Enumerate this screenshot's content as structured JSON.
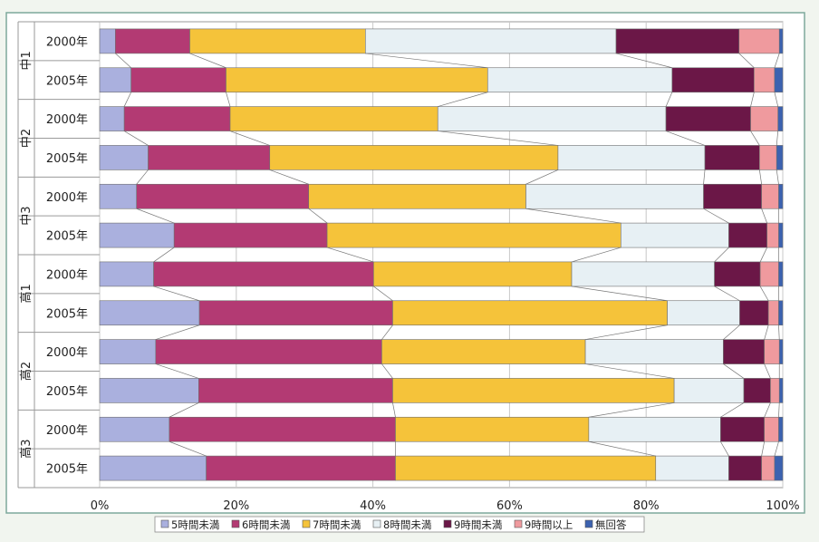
{
  "chart_data": {
    "type": "bar",
    "orientation": "horizontal",
    "stacked": true,
    "normalized": true,
    "title": "",
    "xlabel": "",
    "ylabel": "",
    "xlim": [
      0,
      100
    ],
    "x_ticks": [
      "0%",
      "20%",
      "40%",
      "60%",
      "80%",
      "100%"
    ],
    "grid": true,
    "legend_position": "bottom",
    "groups": [
      "中1",
      "中2",
      "中3",
      "高1",
      "高2",
      "高3"
    ],
    "categories": [
      "2000年",
      "2005年",
      "2000年",
      "2005年",
      "2000年",
      "2005年",
      "2000年",
      "2005年",
      "2000年",
      "2005年",
      "2000年",
      "2005年"
    ],
    "category_group": [
      0,
      0,
      1,
      1,
      2,
      2,
      3,
      3,
      4,
      4,
      5,
      5
    ],
    "series": [
      {
        "name": "5時間未満",
        "color": "#aab0de",
        "values": [
          2.3,
          4.6,
          3.6,
          7.1,
          5.4,
          10.9,
          7.9,
          14.6,
          8.2,
          14.5,
          10.2,
          15.6
        ]
      },
      {
        "name": "6時間未満",
        "color": "#b33a73",
        "values": [
          10.9,
          13.9,
          15.5,
          17.8,
          25.2,
          22.4,
          32.2,
          28.3,
          33.1,
          28.4,
          33.1,
          27.7
        ]
      },
      {
        "name": "7時間未満",
        "color": "#f5c33a",
        "values": [
          25.7,
          38.3,
          30.4,
          42.2,
          31.8,
          43.0,
          29.0,
          40.2,
          29.8,
          41.2,
          28.3,
          38.1
        ]
      },
      {
        "name": "8時間未満",
        "color": "#e7f0f4",
        "values": [
          36.7,
          27.0,
          33.4,
          21.5,
          26.0,
          15.8,
          20.9,
          10.6,
          20.2,
          10.2,
          19.3,
          10.7
        ]
      },
      {
        "name": "9時間未満",
        "color": "#6b1747",
        "values": [
          18.0,
          12.0,
          12.4,
          8.0,
          8.5,
          5.6,
          6.7,
          4.2,
          6.0,
          3.9,
          6.4,
          4.8
        ]
      },
      {
        "name": "9時間以上",
        "color": "#ef9a9e",
        "values": [
          5.9,
          3.0,
          4.0,
          2.5,
          2.5,
          1.7,
          2.7,
          1.5,
          2.2,
          1.3,
          2.1,
          1.9
        ]
      },
      {
        "name": "無回答",
        "color": "#3c62b0",
        "values": [
          0.5,
          1.2,
          0.7,
          0.9,
          0.6,
          0.6,
          0.6,
          0.6,
          0.5,
          0.5,
          0.6,
          1.2
        ]
      }
    ]
  },
  "colors": {
    "background": "#f1f5ef",
    "plot_area": "#ffffff",
    "grid": "#c8c8c8",
    "frame": "#7da99c"
  }
}
